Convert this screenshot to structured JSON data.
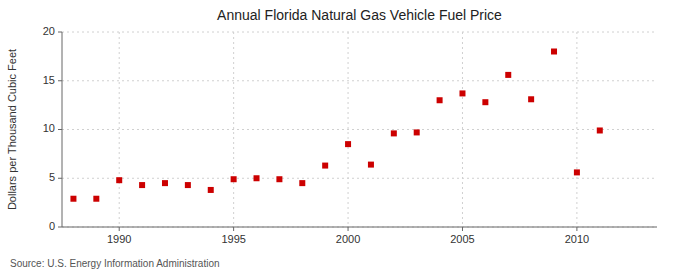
{
  "chart_data": {
    "type": "scatter",
    "title": "Annual Florida Natural Gas Vehicle Fuel Price",
    "y_label": "Dollars per Thousand Cubic Feet",
    "source": "Source: U.S. Energy Information Administration",
    "x": [
      1988,
      1989,
      1990,
      1991,
      1992,
      1993,
      1994,
      1995,
      1996,
      1997,
      1998,
      1999,
      2000,
      2001,
      2002,
      2003,
      2004,
      2005,
      2006,
      2007,
      2008,
      2009,
      2010,
      2011
    ],
    "values": [
      2.9,
      2.9,
      4.8,
      4.3,
      4.5,
      4.3,
      3.8,
      4.9,
      5.0,
      4.9,
      4.5,
      6.3,
      8.5,
      6.4,
      9.6,
      9.7,
      13.0,
      13.7,
      12.8,
      15.6,
      13.1,
      18.0,
      5.6,
      9.9
    ],
    "color": "#cc0000",
    "marker": "square",
    "xlim": [
      1987.5,
      2013.5
    ],
    "xticks": [
      1990,
      1995,
      2000,
      2005,
      2010
    ],
    "ylim": [
      0,
      20
    ],
    "yticks": [
      0,
      5,
      10,
      15,
      20
    ],
    "grid": true
  }
}
